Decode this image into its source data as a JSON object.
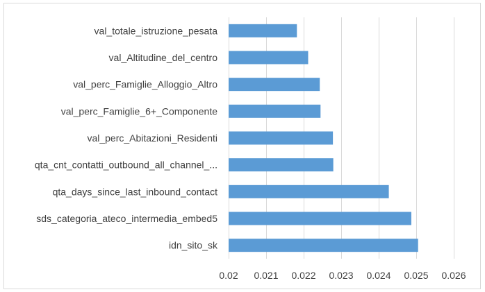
{
  "chart_data": {
    "type": "bar",
    "orientation": "horizontal",
    "title": "",
    "xlabel": "",
    "ylabel": "",
    "categories": [
      "val_totale_istruzione_pesata",
      "val_Altitudine_del_centro",
      "val_perc_Famiglie_Alloggio_Altro",
      "val_perc_Famiglie_6+_Componente",
      "val_perc_Abitazioni_Residenti",
      "qta_cnt_contatti_outbound_all_channel_...",
      "qta_days_since_last_inbound_contact",
      "sds_categoria_ateco_intermedia_embed5",
      "idn_sito_sk"
    ],
    "values": [
      0.02182,
      0.02212,
      0.02243,
      0.02245,
      0.02278,
      0.02279,
      0.02427,
      0.02487,
      0.02505
    ],
    "xlim": [
      0.02,
      0.026
    ],
    "xticks": [
      "0.02",
      "0.021",
      "0.022",
      "0.023",
      "0.024",
      "0.025",
      "0.026"
    ],
    "xtick_values": [
      0.02,
      0.021,
      0.022,
      0.023,
      0.024,
      0.025,
      0.026
    ],
    "grid": "vertical",
    "legend": "none",
    "bar_color": "#5b9bd5"
  }
}
